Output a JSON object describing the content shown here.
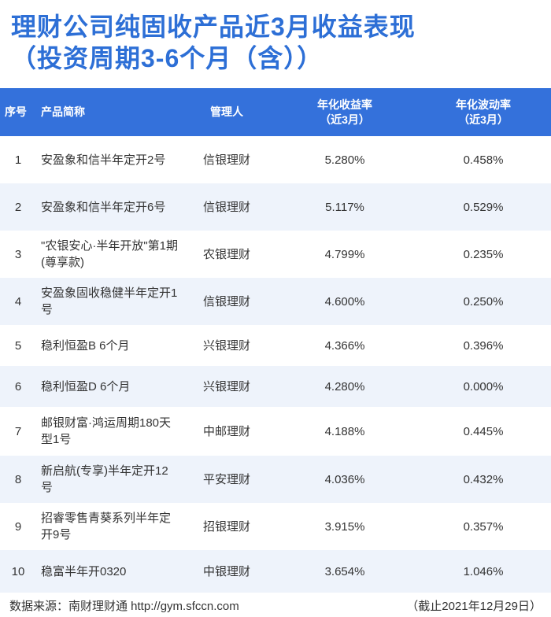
{
  "title": {
    "line1": "理财公司纯固收产品近3月收益表现",
    "line2": "（投资周期3-6个月（含））"
  },
  "table": {
    "headers": {
      "idx": "序号",
      "name": "产品简称",
      "manager": "管理人",
      "return_l1": "年化收益率",
      "return_l2": "（近3月）",
      "vol_l1": "年化波动率",
      "vol_l2": "（近3月）"
    },
    "rows": [
      {
        "idx": "1",
        "name": "安盈象和信半年定开2号",
        "manager": "信银理财",
        "ret": "5.280%",
        "vol": "0.458%"
      },
      {
        "idx": "2",
        "name": "安盈象和信半年定开6号",
        "manager": "信银理财",
        "ret": "5.117%",
        "vol": "0.529%"
      },
      {
        "idx": "3",
        "name": "\"农银安心·半年开放\"第1期(尊享款)",
        "manager": "农银理财",
        "ret": "4.799%",
        "vol": "0.235%"
      },
      {
        "idx": "4",
        "name": "安盈象固收稳健半年定开1号",
        "manager": "信银理财",
        "ret": "4.600%",
        "vol": "0.250%"
      },
      {
        "idx": "5",
        "name": "稳利恒盈B 6个月",
        "manager": "兴银理财",
        "ret": "4.366%",
        "vol": "0.396%"
      },
      {
        "idx": "6",
        "name": "稳利恒盈D 6个月",
        "manager": "兴银理财",
        "ret": "4.280%",
        "vol": "0.000%"
      },
      {
        "idx": "7",
        "name": "邮银财富·鸿运周期180天型1号",
        "manager": "中邮理财",
        "ret": "4.188%",
        "vol": "0.445%"
      },
      {
        "idx": "8",
        "name": "新启航(专享)半年定开12号",
        "manager": "平安理财",
        "ret": "4.036%",
        "vol": "0.432%"
      },
      {
        "idx": "9",
        "name": "招睿零售青葵系列半年定开9号",
        "manager": "招银理财",
        "ret": "3.915%",
        "vol": "0.357%"
      },
      {
        "idx": "10",
        "name": "稳富半年开0320",
        "manager": "中银理财",
        "ret": "3.654%",
        "vol": "1.046%"
      }
    ]
  },
  "footer": {
    "source": "数据来源：南财理财通 http://gym.sfccn.com",
    "cutoff": "（截止2021年12月29日）"
  },
  "colors": {
    "title": "#2d6fd6",
    "header_bg": "#3471db",
    "stripe": "#eef3fb"
  }
}
